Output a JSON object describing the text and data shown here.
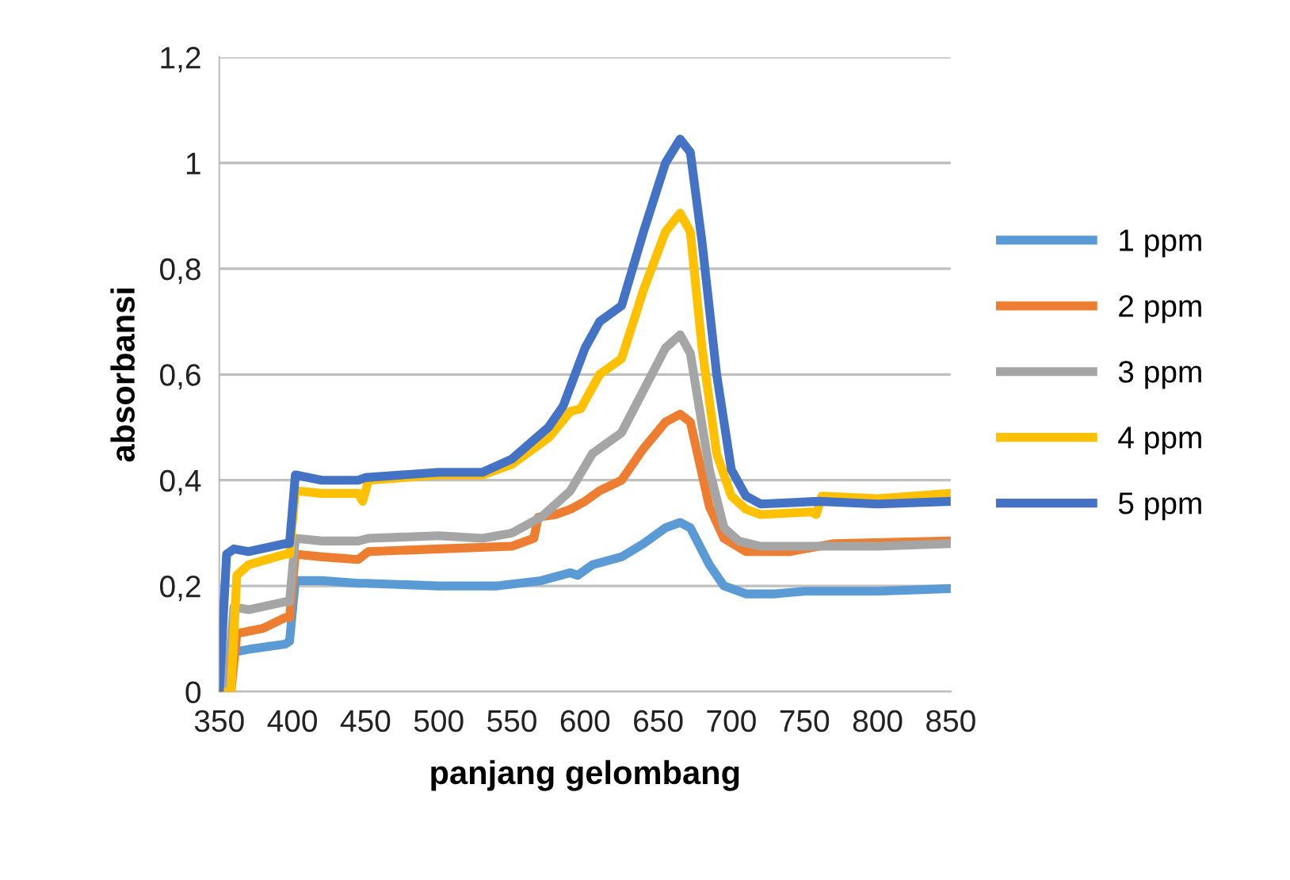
{
  "chart_data": {
    "type": "line",
    "xlabel": "panjang gelombang",
    "ylabel": "absorbansi",
    "xlim": [
      350,
      850
    ],
    "xticks": [
      350,
      400,
      450,
      500,
      550,
      600,
      650,
      700,
      750,
      800,
      850
    ],
    "ylim": [
      0,
      1.2
    ],
    "yticks": [
      0,
      {
        "value": 0.2,
        "label": "0,2"
      },
      {
        "value": 0.4,
        "label": "0,4"
      },
      {
        "value": 0.6,
        "label": "0,6"
      },
      {
        "value": 0.8,
        "label": "0,8"
      },
      1,
      {
        "value": 1.2,
        "label": "1,2"
      }
    ],
    "grid": "y",
    "legend": "right",
    "marker": "none",
    "line_style": "solid",
    "series": [
      {
        "name": "1 ppm",
        "color": "#5b9bd5",
        "x": [
          350,
          355,
          360,
          370,
          395,
          398,
          402,
          420,
          445,
          450,
          500,
          540,
          570,
          590,
          595,
          605,
          625,
          640,
          655,
          665,
          672,
          685,
          695,
          710,
          730,
          750,
          800,
          850
        ],
        "values": [
          0,
          0,
          0.075,
          0.08,
          0.09,
          0.095,
          0.21,
          0.21,
          0.205,
          0.205,
          0.2,
          0.2,
          0.21,
          0.225,
          0.22,
          0.24,
          0.255,
          0.28,
          0.31,
          0.32,
          0.31,
          0.24,
          0.2,
          0.185,
          0.185,
          0.19,
          0.19,
          0.195
        ]
      },
      {
        "name": "2 ppm",
        "color": "#ed7d31",
        "x": [
          350,
          358,
          362,
          380,
          395,
          398,
          402,
          420,
          445,
          452,
          500,
          550,
          565,
          568,
          580,
          590,
          600,
          610,
          625,
          640,
          655,
          665,
          672,
          685,
          695,
          710,
          740,
          750,
          770,
          850
        ],
        "values": [
          0,
          0,
          0.11,
          0.12,
          0.14,
          0.14,
          0.26,
          0.255,
          0.25,
          0.265,
          0.27,
          0.275,
          0.29,
          0.33,
          0.335,
          0.345,
          0.36,
          0.38,
          0.4,
          0.46,
          0.51,
          0.525,
          0.51,
          0.35,
          0.29,
          0.265,
          0.265,
          0.27,
          0.28,
          0.285
        ]
      },
      {
        "name": "3 ppm",
        "color": "#a5a5a5",
        "x": [
          350,
          355,
          360,
          370,
          395,
          398,
          402,
          420,
          445,
          452,
          500,
          530,
          550,
          570,
          590,
          605,
          625,
          640,
          655,
          665,
          672,
          685,
          695,
          705,
          720,
          800,
          850
        ],
        "values": [
          0,
          0,
          0.16,
          0.155,
          0.17,
          0.17,
          0.29,
          0.285,
          0.285,
          0.29,
          0.295,
          0.29,
          0.3,
          0.33,
          0.38,
          0.45,
          0.49,
          0.57,
          0.65,
          0.675,
          0.64,
          0.42,
          0.31,
          0.285,
          0.275,
          0.275,
          0.28
        ]
      },
      {
        "name": "4 ppm",
        "color": "#ffc000",
        "x": [
          350,
          358,
          362,
          370,
          395,
          398,
          402,
          420,
          445,
          448,
          452,
          500,
          530,
          550,
          575,
          590,
          597,
          610,
          625,
          640,
          655,
          665,
          672,
          680,
          690,
          700,
          710,
          720,
          755,
          758,
          762,
          800,
          850
        ],
        "values": [
          0,
          0,
          0.22,
          0.24,
          0.26,
          0.26,
          0.38,
          0.375,
          0.375,
          0.36,
          0.4,
          0.41,
          0.41,
          0.43,
          0.48,
          0.53,
          0.535,
          0.6,
          0.63,
          0.76,
          0.87,
          0.905,
          0.87,
          0.65,
          0.45,
          0.37,
          0.345,
          0.335,
          0.34,
          0.335,
          0.37,
          0.365,
          0.375
        ]
      },
      {
        "name": "5 ppm",
        "color": "#4472c4",
        "x": [
          350,
          355,
          360,
          370,
          395,
          398,
          402,
          420,
          445,
          450,
          500,
          530,
          550,
          575,
          585,
          600,
          610,
          625,
          640,
          655,
          665,
          672,
          680,
          690,
          700,
          710,
          720,
          760,
          800,
          850
        ],
        "values": [
          0,
          0.26,
          0.27,
          0.265,
          0.28,
          0.28,
          0.41,
          0.4,
          0.4,
          0.405,
          0.415,
          0.415,
          0.44,
          0.5,
          0.54,
          0.65,
          0.7,
          0.73,
          0.87,
          1.0,
          1.045,
          1.02,
          0.85,
          0.6,
          0.42,
          0.37,
          0.355,
          0.36,
          0.355,
          0.36
        ]
      }
    ]
  }
}
